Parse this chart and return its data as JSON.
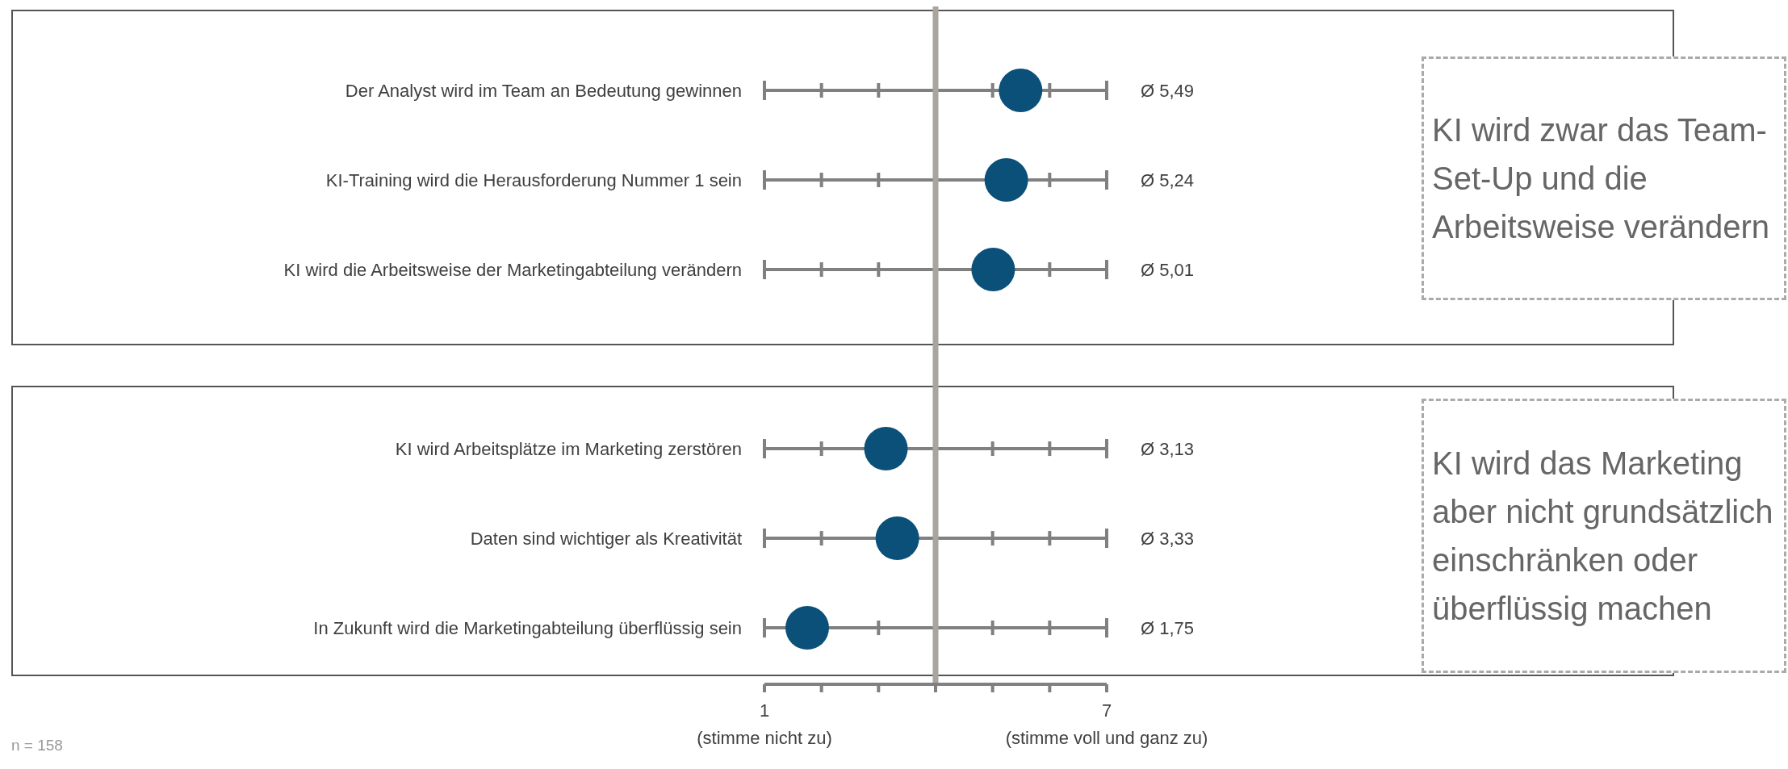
{
  "chart_data": {
    "type": "scatter",
    "categories": [
      "Der Analyst wird im Team an Bedeutung gewinnen",
      "KI-Training wird die Herausforderung Nummer 1 sein",
      "KI wird die Arbeitsweise der Marketingabteilung verändern",
      null,
      "KI wird Arbeitsplätze im Marketing zerstören",
      "Daten sind wichtiger als Kreativität",
      "In Zukunft wird die Marketingabteilung überflüssig sein"
    ],
    "series": [
      {
        "color": "#0b5078",
        "values": [
          5.49,
          5.24,
          5.01,
          null,
          3.13,
          3.33,
          1.75
        ],
        "value_labels": [
          "Ø 5,49",
          "Ø 5,24",
          "Ø 5,01",
          null,
          "Ø 3,13",
          "Ø 3,33",
          "Ø 1,75"
        ]
      }
    ],
    "orientation": "horizontal",
    "xlim": [
      1,
      7
    ],
    "xticks": [
      {
        "value": 1,
        "label": "1\n(stimme nicht zu)"
      },
      {
        "value": 2,
        "label": null
      },
      {
        "value": 3,
        "label": null
      },
      {
        "value": 4,
        "label": null
      },
      {
        "value": 5,
        "label": null
      },
      {
        "value": 6,
        "label": null
      },
      {
        "value": 7,
        "label": "7\n(stimme voll und ganz zu)"
      }
    ],
    "grid": "y",
    "marker": "circle",
    "legend": false,
    "ref_lines": [
      {
        "axis": "x",
        "value": 4,
        "color": "#aaa49e"
      }
    ],
    "annotations": [
      "KI wird zwar das Team-Set-Up und die Arbeitsweise verändern",
      "KI wird das Marketing aber nicht grundsätzlich einschränken oder überflüssig machen",
      "n = 158"
    ]
  }
}
